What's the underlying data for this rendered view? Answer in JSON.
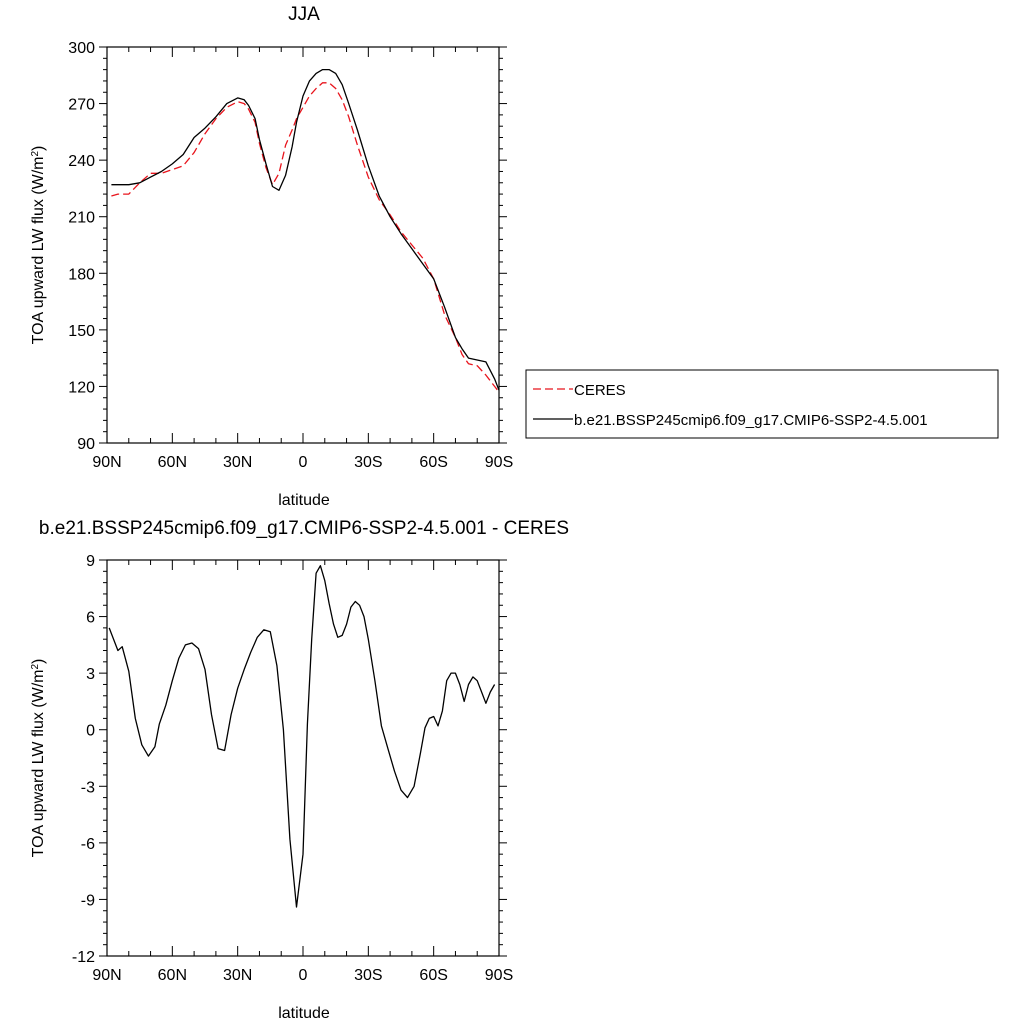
{
  "chart_data": [
    {
      "type": "line",
      "title": "JJA",
      "xlabel": "latitude",
      "ylabel": "TOA upward LW flux (W/m²)",
      "xlim": [
        90,
        -90
      ],
      "ylim": [
        90,
        300
      ],
      "xticks": [
        90,
        60,
        30,
        0,
        -30,
        -60,
        -90
      ],
      "xtick_labels": [
        "90N",
        "60N",
        "30N",
        "0",
        "30S",
        "60S",
        "90S"
      ],
      "yticks": [
        90,
        120,
        150,
        180,
        210,
        240,
        270,
        300
      ],
      "ytick_labels": [
        "90",
        "120",
        "150",
        "180",
        "210",
        "240",
        "270",
        "300"
      ],
      "legend_position": "right",
      "series": [
        {
          "name": "CERES",
          "color": "#e8141c",
          "dash": "dashed",
          "x": [
            88,
            85,
            80,
            75,
            70,
            65,
            60,
            55,
            50,
            45,
            40,
            35,
            30,
            27,
            25,
            22,
            20,
            17,
            14,
            11,
            8,
            5,
            3,
            0,
            -3,
            -6,
            -9,
            -12,
            -15,
            -18,
            -21,
            -25,
            -30,
            -35,
            -40,
            -45,
            -50,
            -55,
            -60,
            -65,
            -70,
            -73,
            -76,
            -80,
            -84,
            -88,
            -90
          ],
          "y": [
            221,
            222,
            222,
            228,
            233,
            233,
            235,
            237,
            244,
            254,
            262,
            268,
            271,
            270,
            267,
            260,
            249,
            236,
            227,
            233,
            248,
            256,
            262,
            268,
            274,
            278,
            281,
            281,
            278,
            272,
            263,
            248,
            231,
            219,
            211,
            202,
            195,
            188,
            177,
            158,
            146,
            137,
            132,
            131,
            126,
            120,
            117
          ]
        },
        {
          "name": "b.e21.BSSP245cmip6.f09_g17.CMIP6-SSP2-4.5.001",
          "color": "#000000",
          "dash": "solid",
          "x": [
            88,
            85,
            80,
            75,
            70,
            65,
            60,
            55,
            50,
            45,
            40,
            35,
            30,
            27,
            25,
            22,
            20,
            17,
            14,
            11,
            8,
            5,
            3,
            0,
            -3,
            -6,
            -9,
            -12,
            -15,
            -18,
            -21,
            -25,
            -30,
            -35,
            -40,
            -45,
            -50,
            -55,
            -60,
            -65,
            -70,
            -73,
            -76,
            -80,
            -84,
            -88,
            -90
          ],
          "y": [
            227,
            227,
            227,
            228,
            231,
            234,
            238,
            243,
            252,
            257,
            263,
            270,
            273,
            272,
            269,
            262,
            251,
            238,
            226,
            224,
            232,
            247,
            260,
            274,
            282,
            286,
            288,
            288,
            286,
            280,
            270,
            256,
            237,
            221,
            210,
            201,
            193,
            185,
            177,
            162,
            146,
            140,
            135,
            134,
            133,
            124,
            118
          ]
        }
      ]
    },
    {
      "type": "line",
      "title": "b.e21.BSSP245cmip6.f09_g17.CMIP6-SSP2-4.5.001 - CERES",
      "xlabel": "latitude",
      "ylabel": "TOA upward LW flux (W/m²)",
      "xlim": [
        90,
        -90
      ],
      "ylim": [
        -12,
        9
      ],
      "xticks": [
        90,
        60,
        30,
        0,
        -30,
        -60,
        -90
      ],
      "xtick_labels": [
        "90N",
        "60N",
        "30N",
        "0",
        "30S",
        "60S",
        "90S"
      ],
      "yticks": [
        -12,
        -9,
        -6,
        -3,
        0,
        3,
        6,
        9
      ],
      "ytick_labels": [
        "-12",
        "-9",
        "-6",
        "-3",
        "0",
        "3",
        "6",
        "9"
      ],
      "series": [
        {
          "color": "#000000",
          "dash": "solid",
          "x": [
            89,
            85,
            83,
            80,
            77,
            74,
            71,
            68,
            66,
            63,
            60,
            57,
            54,
            51,
            48,
            45,
            42,
            39,
            36,
            33,
            30,
            27,
            24,
            21,
            18,
            15,
            12,
            9,
            6,
            3,
            0,
            -2,
            -4,
            -6,
            -8,
            -10,
            -12,
            -14,
            -16,
            -18,
            -20,
            -22,
            -24,
            -26,
            -28,
            -30,
            -33,
            -36,
            -39,
            -42,
            -45,
            -48,
            -51,
            -54,
            -56,
            -58,
            -60,
            -62,
            -64,
            -66,
            -68,
            -70,
            -72,
            -74,
            -76,
            -78,
            -80,
            -82,
            -84,
            -86,
            -88
          ],
          "y": [
            5.4,
            4.2,
            4.4,
            3.1,
            0.6,
            -0.8,
            -1.4,
            -0.9,
            0.3,
            1.3,
            2.6,
            3.8,
            4.5,
            4.6,
            4.3,
            3.2,
            0.8,
            -1.0,
            -1.1,
            0.8,
            2.2,
            3.2,
            4.1,
            4.9,
            5.3,
            5.2,
            3.4,
            0.0,
            -5.8,
            -9.4,
            -6.6,
            0.3,
            4.8,
            8.3,
            8.7,
            7.9,
            6.7,
            5.6,
            4.9,
            5.0,
            5.6,
            6.5,
            6.8,
            6.6,
            6.0,
            4.8,
            2.6,
            0.2,
            -1.0,
            -2.2,
            -3.2,
            -3.6,
            -3.0,
            -1.2,
            0.1,
            0.6,
            0.7,
            0.2,
            1.0,
            2.6,
            3.0,
            3.0,
            2.4,
            1.5,
            2.4,
            2.8,
            2.6,
            2.0,
            1.4,
            2.0,
            2.4
          ]
        }
      ]
    }
  ]
}
